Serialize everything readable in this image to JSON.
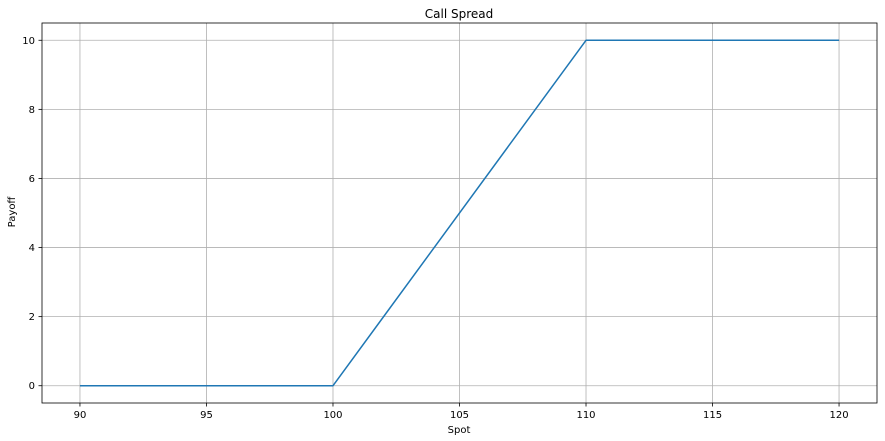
{
  "chart_data": {
    "type": "line",
    "title": "Call Spread",
    "xlabel": "Spot",
    "ylabel": "Payoff",
    "xlim": [
      88.5,
      121.5
    ],
    "ylim": [
      -0.5,
      10.5
    ],
    "xticks": [
      90,
      95,
      100,
      105,
      110,
      115,
      120
    ],
    "yticks": [
      0,
      2,
      4,
      6,
      8,
      10
    ],
    "grid": true,
    "series": [
      {
        "color": "#1f77b4",
        "x": [
          90,
          100,
          110,
          120
        ],
        "y": [
          0,
          0,
          10,
          10
        ]
      }
    ]
  }
}
